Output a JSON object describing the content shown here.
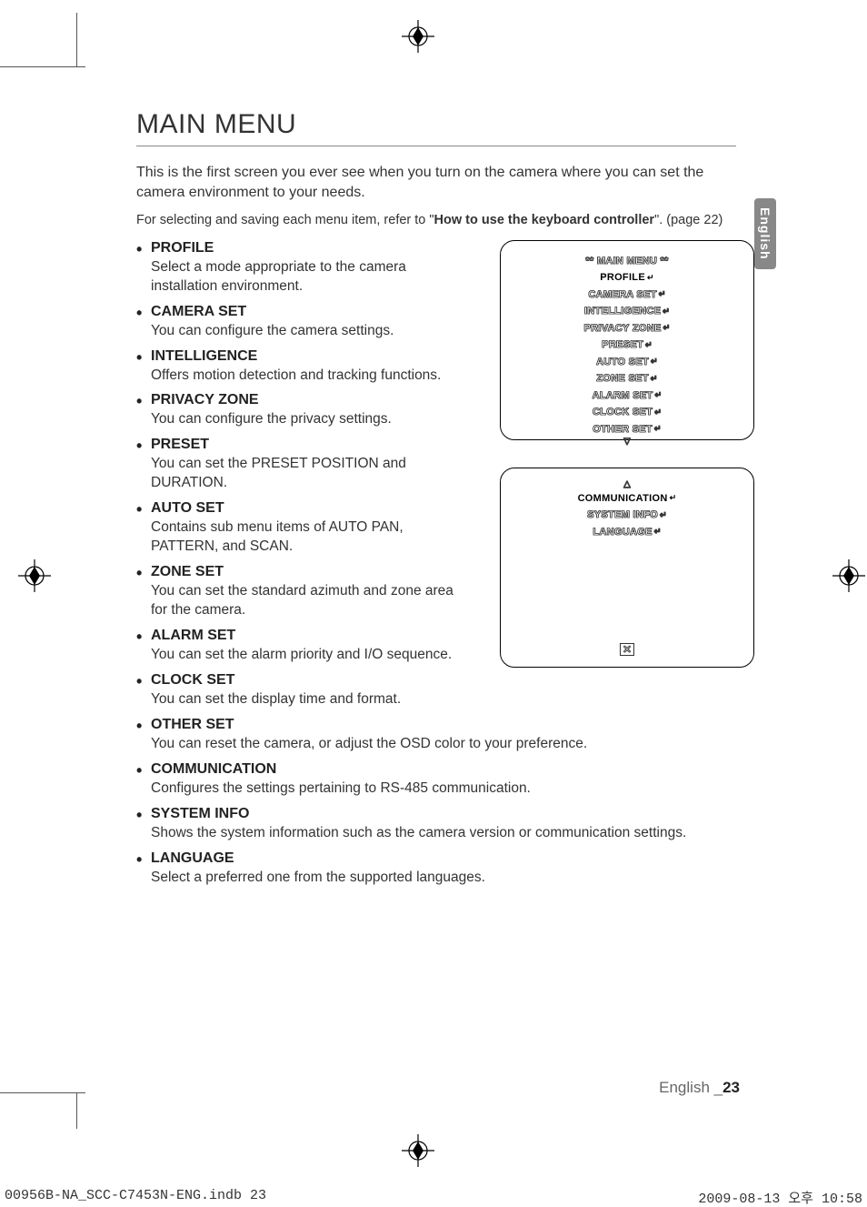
{
  "page": {
    "title": "MAIN MENU",
    "intro": "This is the first screen you ever see when you turn on the camera where you can set the camera environment to your needs.",
    "note_prefix": "For selecting and saving each menu item, refer to \"",
    "note_strong": "How to use the keyboard controller",
    "note_suffix": "\". (page 22)",
    "side_tab": "English",
    "footer_lang": "English _",
    "footer_page": "23"
  },
  "items": [
    {
      "title": "PROFILE",
      "desc": "Select a mode appropriate to the camera installation environment."
    },
    {
      "title": "CAMERA SET",
      "desc": "You can configure the camera settings."
    },
    {
      "title": "INTELLIGENCE",
      "desc": "Offers motion detection and tracking functions."
    },
    {
      "title": "PRIVACY ZONE",
      "desc": "You can configure the privacy settings."
    },
    {
      "title": "PRESET",
      "desc": "You can set the PRESET POSITION and DURATION."
    },
    {
      "title": "AUTO SET",
      "desc": "Contains sub menu items of AUTO PAN, PATTERN, and SCAN."
    },
    {
      "title": "ZONE SET",
      "desc": "You can set the standard azimuth and zone area for the camera."
    },
    {
      "title": "ALARM SET",
      "desc": "You can set the alarm priority and I/O sequence."
    },
    {
      "title": "CLOCK SET",
      "desc": "You can set the display time and format."
    },
    {
      "title": "OTHER SET",
      "desc": "You can reset the camera, or adjust the OSD color to your preference."
    },
    {
      "title": "COMMUNICATION",
      "desc": "Configures the settings pertaining to RS-485 communication."
    },
    {
      "title": "SYSTEM INFO",
      "desc": "Shows the system information such as the camera version or communication settings."
    },
    {
      "title": "LANGUAGE",
      "desc": "Select a preferred one from the supported languages."
    }
  ],
  "osd1": {
    "header": "** MAIN MENU **",
    "selected": "PROFILE",
    "lines": [
      "CAMERA SET",
      "INTELLIGENCE",
      "PRIVACY ZONE",
      "PRESET",
      "AUTO SET",
      "ZONE SET",
      "ALARM SET",
      "CLOCK SET",
      "OTHER SET"
    ],
    "arrow_down": "▽"
  },
  "osd2": {
    "arrow_up": "△",
    "selected": "COMMUNICATION",
    "lines": [
      "SYSTEM INFO",
      "LANGUAGE"
    ],
    "exit": "✕"
  },
  "print": {
    "left": "00956B-NA_SCC-C7453N-ENG.indb   23",
    "right": "2009-08-13   오후 10:58"
  }
}
